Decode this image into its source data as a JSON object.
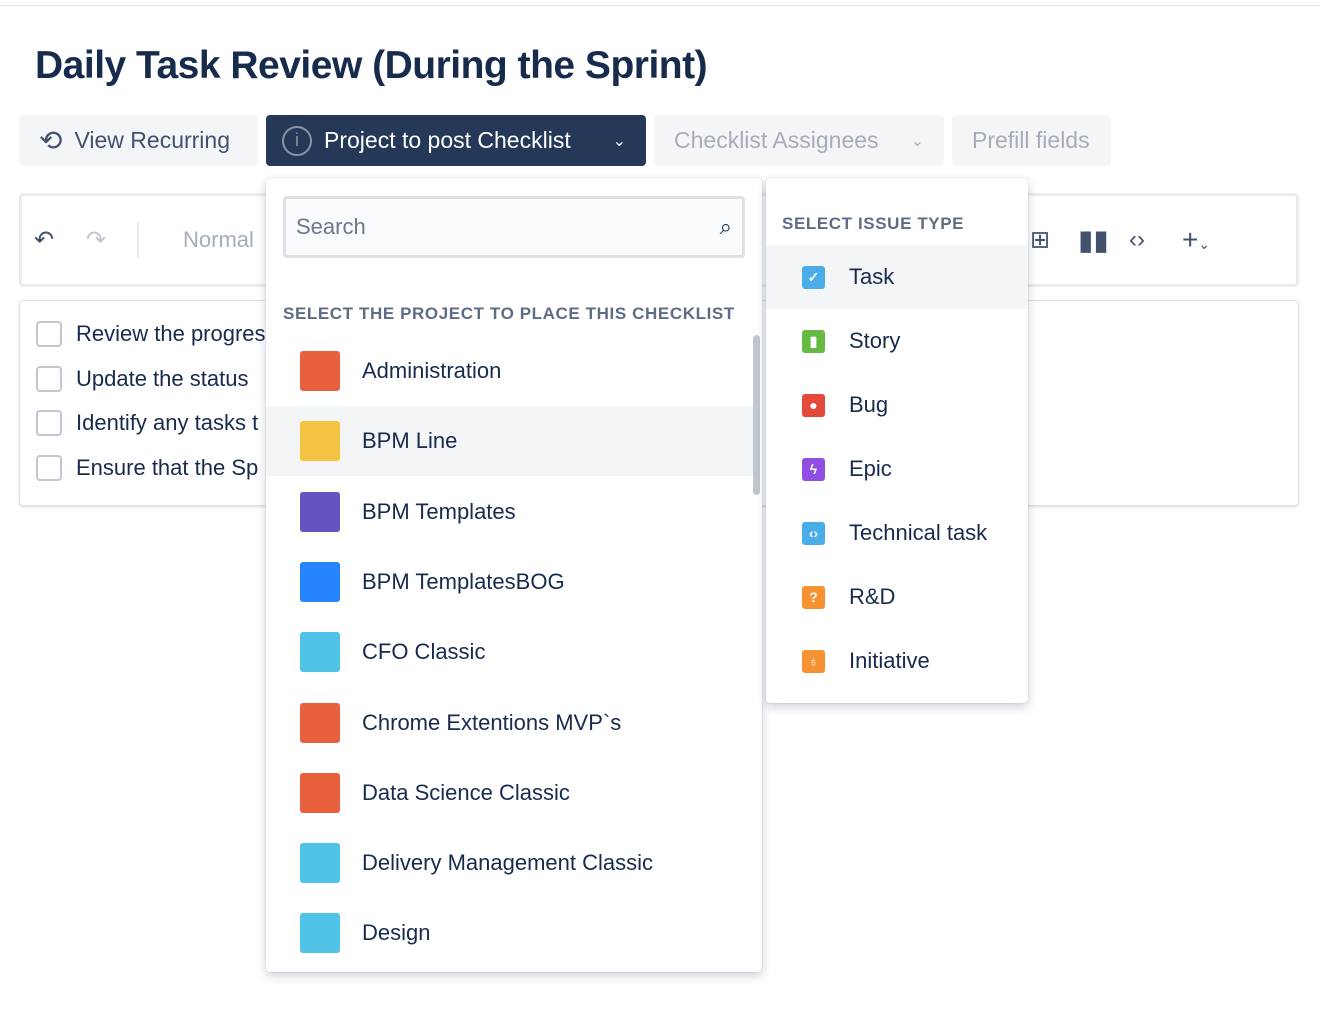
{
  "page": {
    "title": "Daily Task Review (During the Sprint)"
  },
  "toolbar": {
    "view_recurring": "View Recurring",
    "project": "Project to post Checklist",
    "assignees": "Checklist Assignees",
    "prefill": "Prefill fields"
  },
  "editor": {
    "text_style": "Normal"
  },
  "checklist": [
    "Review the progres",
    "Update the status",
    "Identify any tasks t",
    "Ensure that the Sp"
  ],
  "project_dropdown": {
    "search_placeholder": "Search",
    "header": "SELECT THE PROJECT TO PLACE THIS CHECKLIST",
    "selected": "BPM Line",
    "items": [
      {
        "label": "Administration",
        "color": "#E8613C",
        "icon": "wrench-icon"
      },
      {
        "label": "BPM Line",
        "color": "#F5C342",
        "icon": "flag-icon"
      },
      {
        "label": "BPM Templates",
        "color": "#6554C0",
        "icon": "drill-icon"
      },
      {
        "label": "BPM TemplatesBOG",
        "color": "#2684FF",
        "icon": "cloud-icon"
      },
      {
        "label": "CFO Classic",
        "color": "#4FC3E8",
        "icon": "rocket-icon"
      },
      {
        "label": "Chrome Extentions MVP`s",
        "color": "#E8613C",
        "icon": "sliders-icon"
      },
      {
        "label": "Data Science Classic",
        "color": "#E8613C",
        "icon": "code-window-icon"
      },
      {
        "label": "Delivery Management Classic",
        "color": "#4FC3E8",
        "icon": "coffee-cup-icon"
      },
      {
        "label": "Design",
        "color": "#4FC3E8",
        "icon": "notepad-icon"
      }
    ]
  },
  "issue_dropdown": {
    "header": "SELECT ISSUE TYPE",
    "selected": "Task",
    "items": [
      {
        "label": "Task",
        "color": "#4BADE8",
        "glyph": "✓"
      },
      {
        "label": "Story",
        "color": "#65BA43",
        "glyph": "▮"
      },
      {
        "label": "Bug",
        "color": "#E5493A",
        "glyph": "●"
      },
      {
        "label": "Epic",
        "color": "#904EE2",
        "glyph": "ϟ"
      },
      {
        "label": "Technical task",
        "color": "#4BADE8",
        "glyph": "‹›"
      },
      {
        "label": "R&D",
        "color": "#F79232",
        "glyph": "?"
      },
      {
        "label": "Initiative",
        "color": "#F79232",
        "glyph": "♁"
      }
    ]
  }
}
